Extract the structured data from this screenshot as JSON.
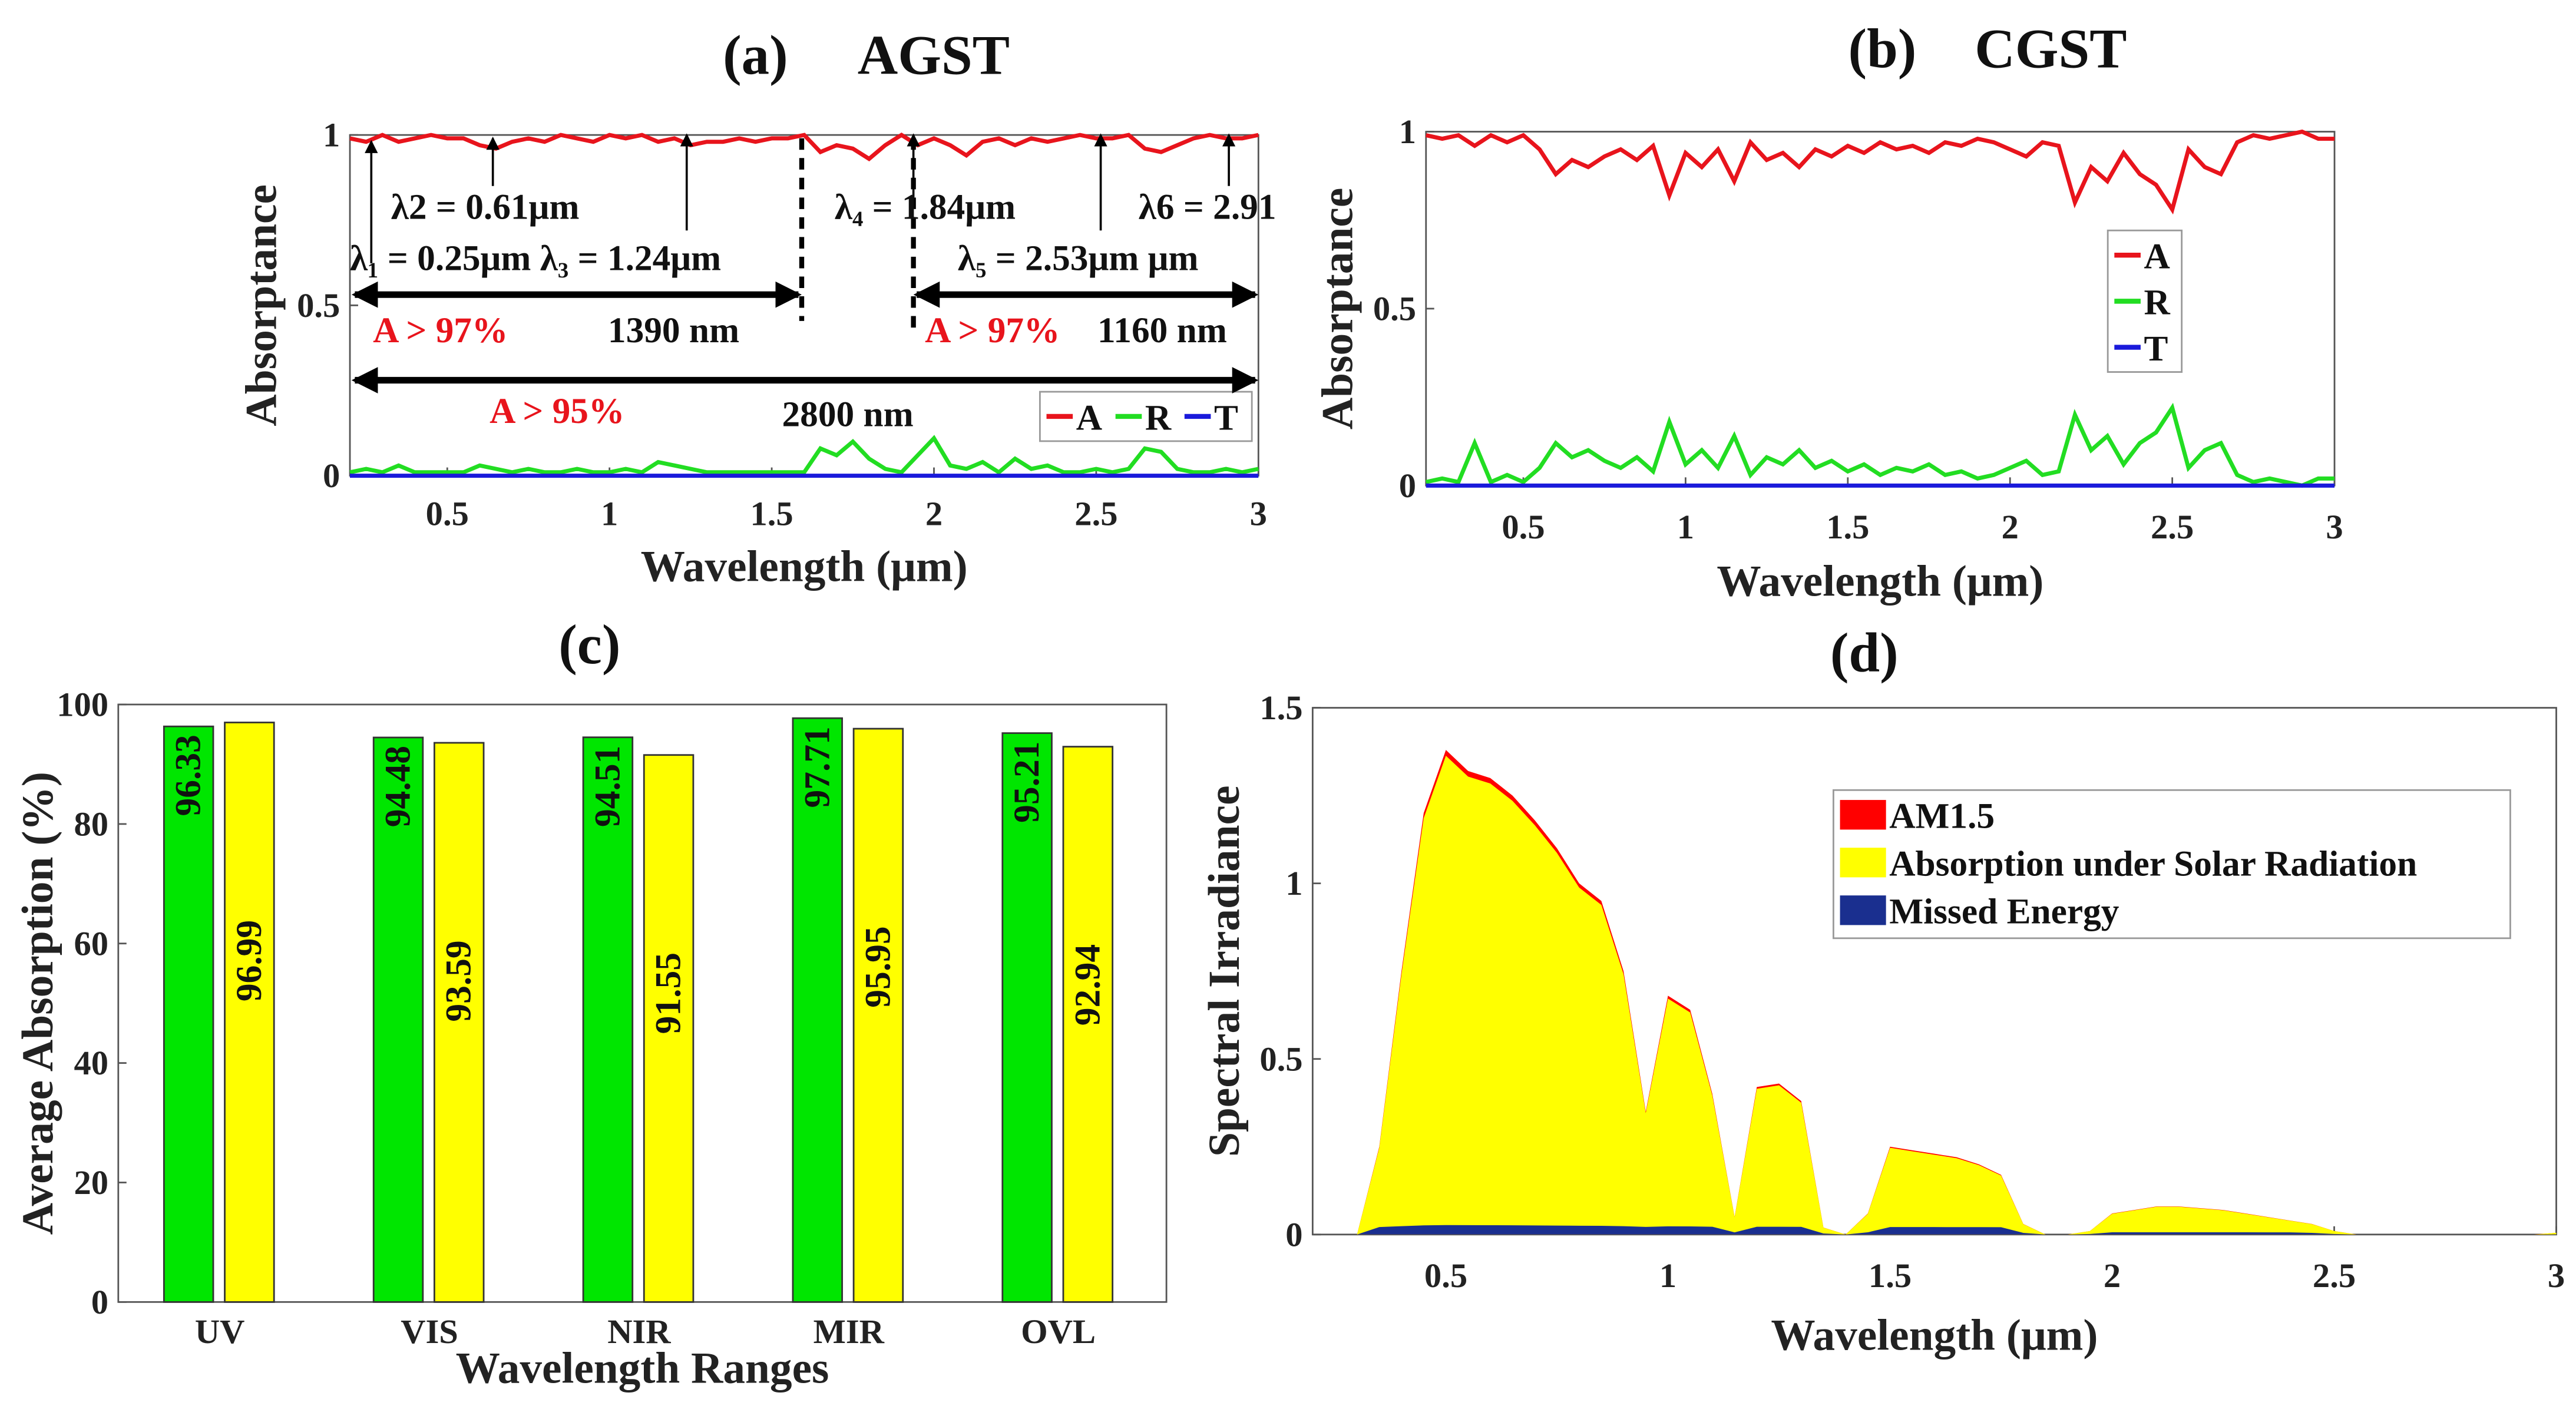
{
  "chart_data": [
    {
      "panel": "a",
      "type": "line",
      "title_letter": "(a)",
      "title": "AGST",
      "xlabel": "Wavelength (μm)",
      "ylabel": "Absorptance",
      "xlim": [
        0.2,
        3.0
      ],
      "ylim": [
        0,
        1
      ],
      "xticks": [
        "0.5",
        "1",
        "1.5",
        "2",
        "2.5",
        "3"
      ],
      "xtick_values": [
        0.5,
        1,
        1.5,
        2,
        2.5,
        3
      ],
      "yticks": [
        "0",
        "0.5",
        "1"
      ],
      "ytick_values": [
        0,
        0.5,
        1
      ],
      "x_start": 0.2,
      "x_step": 0.05,
      "legend": [
        "A",
        "R",
        "T"
      ],
      "legend_placement": "lower-right",
      "series": [
        {
          "name": "A",
          "color": "#e8141c",
          "values": [
            0.99,
            0.98,
            1.0,
            0.98,
            0.99,
            1.0,
            0.99,
            0.99,
            0.97,
            0.96,
            0.98,
            0.99,
            0.98,
            1.0,
            0.99,
            0.98,
            1.0,
            0.99,
            1.0,
            0.98,
            0.99,
            0.97,
            0.98,
            0.98,
            0.99,
            0.98,
            0.99,
            0.99,
            1.0,
            0.95,
            0.97,
            0.96,
            0.93,
            0.97,
            1.0,
            0.97,
            0.99,
            0.97,
            0.94,
            0.98,
            0.99,
            0.97,
            0.99,
            0.98,
            0.99,
            1.0,
            0.99,
            0.99,
            1.0,
            0.96,
            0.95,
            0.97,
            0.99,
            1.0,
            0.99,
            0.99,
            1.0
          ]
        },
        {
          "name": "R",
          "color": "#22dd22",
          "values": [
            0.01,
            0.02,
            0.01,
            0.03,
            0.01,
            0.01,
            0.01,
            0.01,
            0.03,
            0.02,
            0.01,
            0.02,
            0.01,
            0.01,
            0.02,
            0.01,
            0.01,
            0.02,
            0.01,
            0.04,
            0.03,
            0.02,
            0.01,
            0.01,
            0.01,
            0.01,
            0.01,
            0.01,
            0.01,
            0.08,
            0.06,
            0.1,
            0.05,
            0.02,
            0.01,
            0.06,
            0.11,
            0.03,
            0.02,
            0.04,
            0.01,
            0.05,
            0.02,
            0.03,
            0.01,
            0.01,
            0.02,
            0.01,
            0.02,
            0.08,
            0.07,
            0.02,
            0.01,
            0.01,
            0.02,
            0.01,
            0.02
          ]
        },
        {
          "name": "T",
          "color": "#1a1adb",
          "values": [
            0,
            0
          ]
        }
      ],
      "annotations": [
        {
          "text": "λ2 = 0.61μm",
          "color": "#111111"
        },
        {
          "text": "λ₁ = 0.25μm λ₃ = 1.24μm",
          "color": "#111111"
        },
        {
          "text": "λ₄ = 1.84μm",
          "color": "#111111"
        },
        {
          "text": "λ6 = 2.91",
          "color": "#111111"
        },
        {
          "text": "λ₅ = 2.53μm μm",
          "color": "#111111"
        },
        {
          "text": "A > 97%",
          "color": "#e8141c"
        },
        {
          "text": "1390 nm",
          "color": "#111111"
        },
        {
          "text": "A > 97%",
          "color": "#e8141c"
        },
        {
          "text": "1160 nm",
          "color": "#111111"
        },
        {
          "text": "A > 95%",
          "color": "#e8141c"
        },
        {
          "text": "2800 nm",
          "color": "#111111"
        }
      ]
    },
    {
      "panel": "b",
      "type": "line",
      "title_letter": "(b)",
      "title": "CGST",
      "xlabel": "Wavelength (μm)",
      "ylabel": "Absorptance",
      "xlim": [
        0.2,
        3.0
      ],
      "ylim": [
        0,
        1
      ],
      "xticks": [
        "0.5",
        "1",
        "1.5",
        "2",
        "2.5",
        "3"
      ],
      "xtick_values": [
        0.5,
        1,
        1.5,
        2,
        2.5,
        3
      ],
      "yticks": [
        "0",
        "0.5",
        "1"
      ],
      "ytick_values": [
        0,
        0.5,
        1
      ],
      "x_start": 0.2,
      "x_step": 0.05,
      "legend": [
        "A",
        "R",
        "T"
      ],
      "legend_placement": "center-right",
      "series": [
        {
          "name": "A",
          "color": "#e8141c",
          "values": [
            0.99,
            0.98,
            0.99,
            0.96,
            0.99,
            0.97,
            0.99,
            0.95,
            0.88,
            0.92,
            0.9,
            0.93,
            0.95,
            0.92,
            0.96,
            0.82,
            0.94,
            0.9,
            0.95,
            0.86,
            0.97,
            0.92,
            0.94,
            0.9,
            0.95,
            0.93,
            0.96,
            0.94,
            0.97,
            0.95,
            0.96,
            0.94,
            0.97,
            0.96,
            0.98,
            0.97,
            0.95,
            0.93,
            0.97,
            0.96,
            0.8,
            0.9,
            0.86,
            0.94,
            0.88,
            0.85,
            0.78,
            0.95,
            0.9,
            0.88,
            0.97,
            0.99,
            0.98,
            0.99,
            1.0,
            0.98,
            0.98
          ]
        },
        {
          "name": "R",
          "color": "#22dd22",
          "values": [
            0.01,
            0.02,
            0.01,
            0.12,
            0.01,
            0.03,
            0.01,
            0.05,
            0.12,
            0.08,
            0.1,
            0.07,
            0.05,
            0.08,
            0.04,
            0.18,
            0.06,
            0.1,
            0.05,
            0.14,
            0.03,
            0.08,
            0.06,
            0.1,
            0.05,
            0.07,
            0.04,
            0.06,
            0.03,
            0.05,
            0.04,
            0.06,
            0.03,
            0.04,
            0.02,
            0.03,
            0.05,
            0.07,
            0.03,
            0.04,
            0.2,
            0.1,
            0.14,
            0.06,
            0.12,
            0.15,
            0.22,
            0.05,
            0.1,
            0.12,
            0.03,
            0.01,
            0.02,
            0.01,
            0.0,
            0.02,
            0.02
          ]
        },
        {
          "name": "T",
          "color": "#1a1adb",
          "values": [
            0,
            0
          ]
        }
      ]
    },
    {
      "panel": "c",
      "type": "bar",
      "title_letter": "(c)",
      "xlabel": "Wavelength Ranges",
      "ylabel": "Average Absorption (%)",
      "ylim": [
        0,
        100
      ],
      "yticks": [
        "0",
        "20",
        "40",
        "60",
        "80",
        "100"
      ],
      "ytick_values": [
        0,
        20,
        40,
        60,
        80,
        100
      ],
      "categories": [
        "UV",
        "VIS",
        "NIR",
        "MIR",
        "OVL"
      ],
      "series": [
        {
          "name": "AGST",
          "color": "#00e600",
          "values": [
            96.33,
            94.48,
            94.51,
            97.71,
            95.21
          ],
          "labels": [
            "96.33",
            "94.48",
            "94.51",
            "97.71",
            "95.21"
          ]
        },
        {
          "name": "CGST",
          "color": "#ffff00",
          "values": [
            96.99,
            93.59,
            91.55,
            95.95,
            92.94
          ],
          "labels": [
            "96.99",
            "93.59",
            "91.55",
            "95.95",
            "92.94"
          ]
        }
      ]
    },
    {
      "panel": "d",
      "type": "area",
      "title_letter": "(d)",
      "xlabel": "Wavelength (μm)",
      "ylabel": "Spectral Irradiance",
      "xlim": [
        0.2,
        3.0
      ],
      "ylim": [
        0,
        1.5
      ],
      "xticks": [
        "0.5",
        "1",
        "1.5",
        "2",
        "2.5",
        "3"
      ],
      "xtick_values": [
        0.5,
        1,
        1.5,
        2,
        2.5,
        3
      ],
      "yticks": [
        "0",
        "0.5",
        "1",
        "1.5"
      ],
      "ytick_values": [
        0,
        0.5,
        1,
        1.5
      ],
      "x_start": 0.3,
      "x_step": 0.05,
      "legend_placement": "top-right",
      "legend": [
        "AM1.5",
        "Absorption under Solar Radiation",
        "Missed Energy"
      ],
      "colors": [
        "#ff0000",
        "#ffff00",
        "#1a2f8f"
      ],
      "am15": [
        0,
        0.25,
        0.75,
        1.2,
        1.38,
        1.32,
        1.3,
        1.25,
        1.18,
        1.1,
        1.0,
        0.95,
        0.75,
        0.35,
        0.68,
        0.64,
        0.4,
        0.05,
        0.42,
        0.43,
        0.38,
        0.02,
        0,
        0.06,
        0.25,
        0.24,
        0.23,
        0.22,
        0.2,
        0.17,
        0.03,
        0,
        0,
        0.01,
        0.06,
        0.07,
        0.08,
        0.08,
        0.075,
        0.07,
        0.06,
        0.05,
        0.04,
        0.03,
        0.01,
        0,
        0,
        0,
        0,
        0,
        0,
        0,
        0,
        0,
        0.005
      ],
      "missed_fraction": 0.025
    }
  ]
}
